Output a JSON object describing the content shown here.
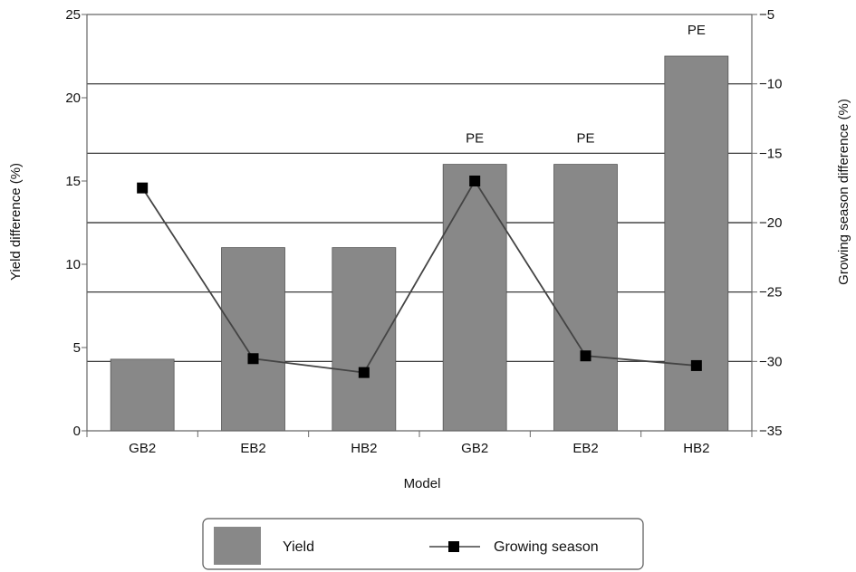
{
  "chart_data": {
    "type": "bar",
    "categories": [
      "GB2",
      "EB2",
      "HB2",
      "GB2",
      "EB2",
      "HB2"
    ],
    "series": [
      {
        "name": "Yield",
        "kind": "bar",
        "axis": "left",
        "color": "#888888",
        "values": [
          4.3,
          11,
          11,
          16,
          16,
          22.5
        ],
        "annotations": [
          "",
          "",
          "",
          "PE",
          "PE",
          "PE"
        ]
      },
      {
        "name": "Growing season",
        "kind": "line",
        "axis": "right",
        "color": "#444444",
        "marker_color": "#000000",
        "values": [
          -17.5,
          -29.8,
          -30.8,
          -17,
          -29.6,
          -30.3
        ]
      }
    ],
    "xlabel": "Model",
    "ylabel": "Yield difference (%)",
    "y2label": "Growing season difference (%)",
    "ylim": [
      0,
      25
    ],
    "yticks": [
      "0",
      "5",
      "10",
      "15",
      "20",
      "25"
    ],
    "y2lim": [
      -35,
      -5
    ],
    "y2ticks": [
      "−35",
      "−30",
      "−25",
      "−20",
      "−15",
      "−10",
      "−5"
    ],
    "y2_gridlines": true,
    "legend_position": "bottom-center",
    "legend": [
      {
        "label": "Yield",
        "symbol": "bar"
      },
      {
        "label": "Growing season",
        "symbol": "line-square"
      }
    ]
  }
}
